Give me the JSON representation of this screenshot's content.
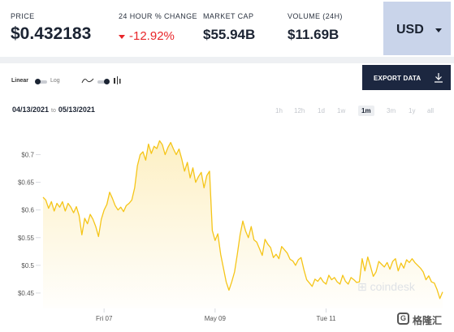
{
  "stats": {
    "price": {
      "label": "PRICE",
      "value": "$0.432183"
    },
    "change": {
      "label": "24 HOUR % CHANGE",
      "value": "-12.92%"
    },
    "market_cap": {
      "label": "MARKET CAP",
      "value": "$55.94B"
    },
    "volume": {
      "label": "VOLUME (24H)",
      "value": "$11.69B"
    }
  },
  "currency": {
    "value": "USD"
  },
  "toolbar": {
    "linear_label": "Linear",
    "log_label": "Log",
    "export_label": "EXPORT DATA"
  },
  "date_range": {
    "from": "04/13/2021",
    "to_label": "to",
    "to": "05/13/2021"
  },
  "periods": [
    "1h",
    "12h",
    "1d",
    "1w",
    "1m",
    "3m",
    "1y",
    "all"
  ],
  "active_period": "1m",
  "watermark": "coindesk",
  "brand": {
    "icon_text": "G",
    "text": "格隆汇"
  },
  "colors": {
    "line": "#f5c518",
    "fill": "#fdf0c4",
    "down": "#e8262a",
    "button": "#1c2740"
  },
  "chart_data": {
    "type": "area",
    "y_tick_labels": [
      "$0.45",
      "$0.5",
      "$0.55",
      "$0.6",
      "$0.65",
      "$0.7"
    ],
    "y_ticks": [
      0.45,
      0.5,
      0.55,
      0.6,
      0.65,
      0.7
    ],
    "x_tick_labels": [
      "Fri 07",
      "May 09",
      "Tue 11"
    ],
    "x_ticks": [
      6.9,
      8.9,
      10.9
    ],
    "xlim": [
      5.8,
      13.0
    ],
    "ylim": [
      0.425,
      0.73
    ],
    "x": [
      5.8,
      5.85,
      5.9,
      5.95,
      6.0,
      6.05,
      6.1,
      6.15,
      6.2,
      6.25,
      6.3,
      6.35,
      6.4,
      6.45,
      6.5,
      6.55,
      6.6,
      6.65,
      6.7,
      6.75,
      6.8,
      6.85,
      6.9,
      6.95,
      7.0,
      7.05,
      7.1,
      7.15,
      7.2,
      7.25,
      7.3,
      7.35,
      7.4,
      7.45,
      7.5,
      7.55,
      7.6,
      7.65,
      7.7,
      7.75,
      7.8,
      7.85,
      7.9,
      7.95,
      8.0,
      8.05,
      8.1,
      8.15,
      8.2,
      8.25,
      8.3,
      8.35,
      8.4,
      8.45,
      8.5,
      8.55,
      8.6,
      8.65,
      8.7,
      8.75,
      8.8,
      8.85,
      8.9,
      8.95,
      9.0,
      9.05,
      9.1,
      9.15,
      9.2,
      9.25,
      9.3,
      9.35,
      9.4,
      9.45,
      9.5,
      9.55,
      9.6,
      9.65,
      9.7,
      9.75,
      9.8,
      9.85,
      9.9,
      9.95,
      10.0,
      10.05,
      10.1,
      10.15,
      10.2,
      10.25,
      10.3,
      10.35,
      10.4,
      10.45,
      10.5,
      10.55,
      10.6,
      10.65,
      10.7,
      10.75,
      10.8,
      10.85,
      10.9,
      10.95,
      11.0,
      11.05,
      11.1,
      11.15,
      11.2,
      11.25,
      11.3,
      11.35,
      11.4,
      11.45,
      11.5,
      11.55,
      11.6,
      11.65,
      11.7,
      11.75,
      11.8,
      11.85,
      11.9,
      11.95,
      12.0,
      12.05,
      12.1,
      12.15,
      12.2,
      12.25,
      12.3,
      12.35,
      12.4,
      12.45,
      12.5,
      12.55,
      12.6,
      12.65,
      12.7,
      12.75,
      12.8,
      12.85,
      12.9,
      12.95,
      13.0
    ],
    "values": [
      0.623,
      0.618,
      0.603,
      0.615,
      0.598,
      0.612,
      0.605,
      0.615,
      0.598,
      0.612,
      0.605,
      0.595,
      0.606,
      0.59,
      0.555,
      0.585,
      0.575,
      0.592,
      0.583,
      0.57,
      0.552,
      0.583,
      0.6,
      0.61,
      0.632,
      0.621,
      0.608,
      0.6,
      0.605,
      0.597,
      0.608,
      0.612,
      0.618,
      0.64,
      0.68,
      0.7,
      0.705,
      0.69,
      0.719,
      0.702,
      0.715,
      0.711,
      0.725,
      0.718,
      0.7,
      0.713,
      0.722,
      0.71,
      0.7,
      0.71,
      0.692,
      0.67,
      0.686,
      0.658,
      0.676,
      0.65,
      0.66,
      0.668,
      0.64,
      0.662,
      0.67,
      0.563,
      0.545,
      0.557,
      0.52,
      0.495,
      0.47,
      0.455,
      0.47,
      0.488,
      0.52,
      0.555,
      0.58,
      0.562,
      0.55,
      0.57,
      0.546,
      0.542,
      0.53,
      0.518,
      0.547,
      0.538,
      0.532,
      0.514,
      0.52,
      0.512,
      0.534,
      0.528,
      0.522,
      0.511,
      0.508,
      0.5,
      0.51,
      0.514,
      0.492,
      0.474,
      0.468,
      0.462,
      0.475,
      0.471,
      0.478,
      0.47,
      0.466,
      0.482,
      0.474,
      0.478,
      0.47,
      0.466,
      0.482,
      0.471,
      0.466,
      0.478,
      0.474,
      0.469,
      0.47,
      0.512,
      0.49,
      0.515,
      0.498,
      0.48,
      0.488,
      0.507,
      0.502,
      0.497,
      0.505,
      0.493,
      0.507,
      0.512,
      0.49,
      0.504,
      0.495,
      0.51,
      0.505,
      0.512,
      0.505,
      0.5,
      0.495,
      0.488,
      0.474,
      0.481,
      0.47,
      0.468,
      0.456,
      0.44,
      0.452
    ]
  }
}
